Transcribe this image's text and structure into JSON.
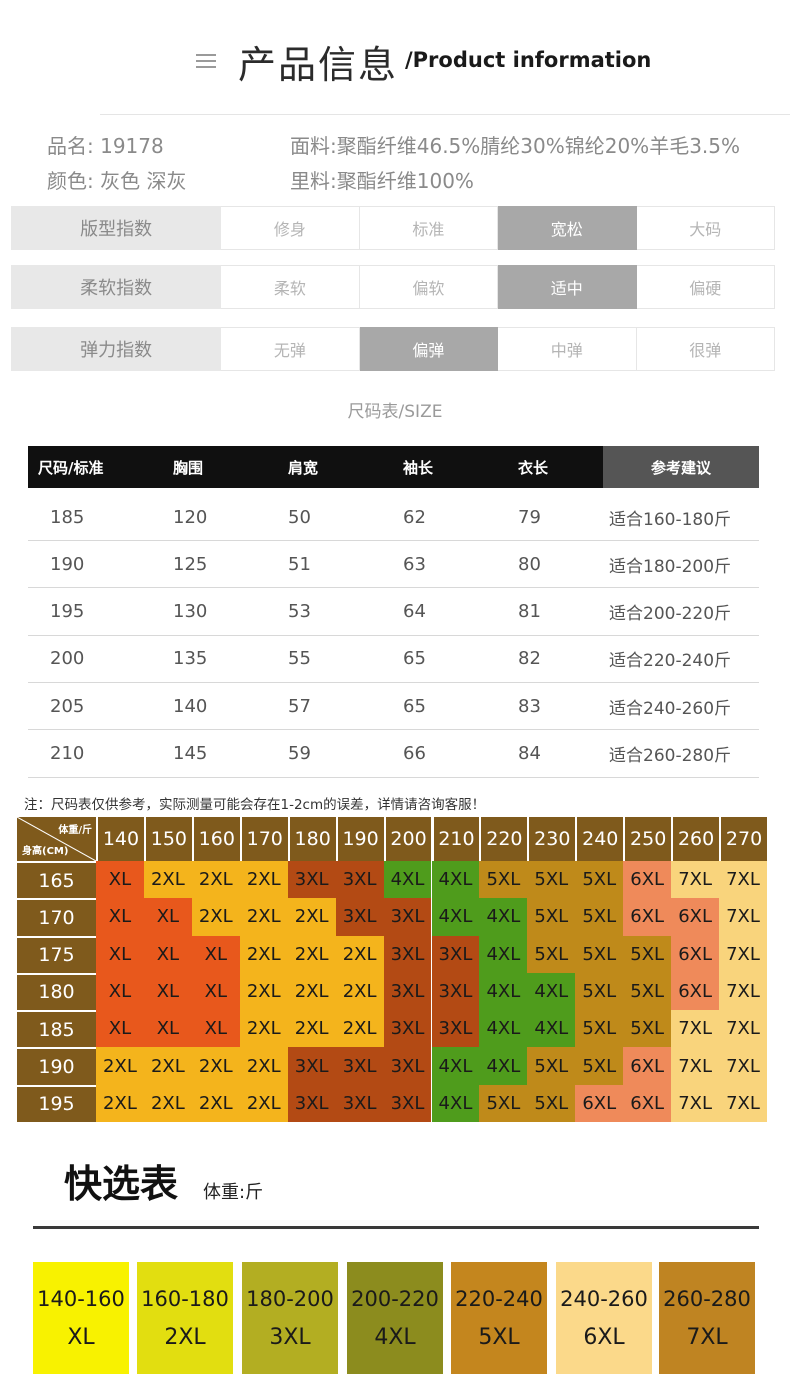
{
  "header": {
    "title_cn": "产品信息",
    "title_en": "/Product information"
  },
  "product": {
    "item_no_label": "品名:",
    "item_no": "19178",
    "color_label": "颜色:",
    "colors": "灰色 深灰",
    "fabric_label": "面料:",
    "fabric": "聚酯纤维46.5%腈纶30%锦纶20%羊毛3.5%",
    "lining_label": "里料:",
    "lining": "聚酯纤维100%"
  },
  "indices": [
    {
      "label": "版型指数",
      "options": [
        "修身",
        "标准",
        "宽松",
        "大码"
      ],
      "selected": 2
    },
    {
      "label": "柔软指数",
      "options": [
        "柔软",
        "偏软",
        "适中",
        "偏硬"
      ],
      "selected": 2
    },
    {
      "label": "弹力指数",
      "options": [
        "无弹",
        "偏弹",
        "中弹",
        "很弹"
      ],
      "selected": 1
    }
  ],
  "size_table": {
    "caption": "尺码表/SIZE",
    "headers": [
      "尺码/标准",
      "胸围",
      "肩宽",
      "袖长",
      "衣长",
      "参考建议"
    ],
    "rows": [
      [
        "185",
        "120",
        "50",
        "62",
        "79",
        "适合160-180斤"
      ],
      [
        "190",
        "125",
        "51",
        "63",
        "80",
        "适合180-200斤"
      ],
      [
        "195",
        "130",
        "53",
        "64",
        "81",
        "适合200-220斤"
      ],
      [
        "200",
        "135",
        "55",
        "65",
        "82",
        "适合220-240斤"
      ],
      [
        "205",
        "140",
        "57",
        "65",
        "83",
        "适合240-260斤"
      ],
      [
        "210",
        "145",
        "59",
        "66",
        "84",
        "适合260-280斤"
      ]
    ]
  },
  "note": "注：尺码表仅供参考，实际测量可能会存在1-2cm的误差，详情请咨询客服！",
  "size_grid": {
    "weight_header": "体重/斤",
    "height_header": "身高(CM)",
    "weights": [
      "140",
      "150",
      "160",
      "170",
      "180",
      "190",
      "200",
      "210",
      "220",
      "230",
      "240",
      "250",
      "260",
      "270"
    ],
    "heights": [
      "165",
      "170",
      "175",
      "180",
      "185",
      "190",
      "195"
    ],
    "cells": [
      [
        "XL",
        "2XL",
        "2XL",
        "2XL",
        "3XL",
        "3XL",
        "4XL",
        "4XL",
        "5XL",
        "5XL",
        "5XL",
        "6XL",
        "7XL",
        "7XL"
      ],
      [
        "XL",
        "XL",
        "2XL",
        "2XL",
        "2XL",
        "3XL",
        "3XL",
        "4XL",
        "4XL",
        "5XL",
        "5XL",
        "6XL",
        "6XL",
        "7XL"
      ],
      [
        "XL",
        "XL",
        "XL",
        "2XL",
        "2XL",
        "2XL",
        "3XL",
        "3XL",
        "4XL",
        "5XL",
        "5XL",
        "5XL",
        "6XL",
        "7XL"
      ],
      [
        "XL",
        "XL",
        "XL",
        "2XL",
        "2XL",
        "2XL",
        "3XL",
        "3XL",
        "4XL",
        "4XL",
        "5XL",
        "5XL",
        "6XL",
        "7XL"
      ],
      [
        "XL",
        "XL",
        "XL",
        "2XL",
        "2XL",
        "2XL",
        "3XL",
        "3XL",
        "4XL",
        "4XL",
        "5XL",
        "5XL",
        "7XL",
        "7XL"
      ],
      [
        "2XL",
        "2XL",
        "2XL",
        "2XL",
        "3XL",
        "3XL",
        "3XL",
        "4XL",
        "4XL",
        "5XL",
        "5XL",
        "6XL",
        "7XL",
        "7XL"
      ],
      [
        "2XL",
        "2XL",
        "2XL",
        "2XL",
        "3XL",
        "3XL",
        "3XL",
        "4XL",
        "5XL",
        "5XL",
        "6XL",
        "6XL",
        "7XL",
        "7XL"
      ]
    ],
    "size_colors": {
      "XL": "#e8581c",
      "2XL": "#f4b41c",
      "3XL": "#b34a14",
      "4XL": "#4f9c1c",
      "5XL": "#bf8a1a",
      "6XL": "#ef8a5a",
      "7XL": "#f9d47c"
    },
    "header_color": "#7f5a1c"
  },
  "quick_select": {
    "title": "快选表",
    "unit": "体重:斤",
    "items": [
      {
        "range": "140-160",
        "size": "XL",
        "color": "#f8f200"
      },
      {
        "range": "160-180",
        "size": "2XL",
        "color": "#e2de10"
      },
      {
        "range": "180-200",
        "size": "3XL",
        "color": "#b3ae22"
      },
      {
        "range": "200-220",
        "size": "4XL",
        "color": "#8c8c1e"
      },
      {
        "range": "220-240",
        "size": "5XL",
        "color": "#c4861e"
      },
      {
        "range": "240-260",
        "size": "6XL",
        "color": "#fbd98a"
      },
      {
        "range": "260-280",
        "size": "7XL",
        "color": "#bf8422"
      }
    ]
  }
}
